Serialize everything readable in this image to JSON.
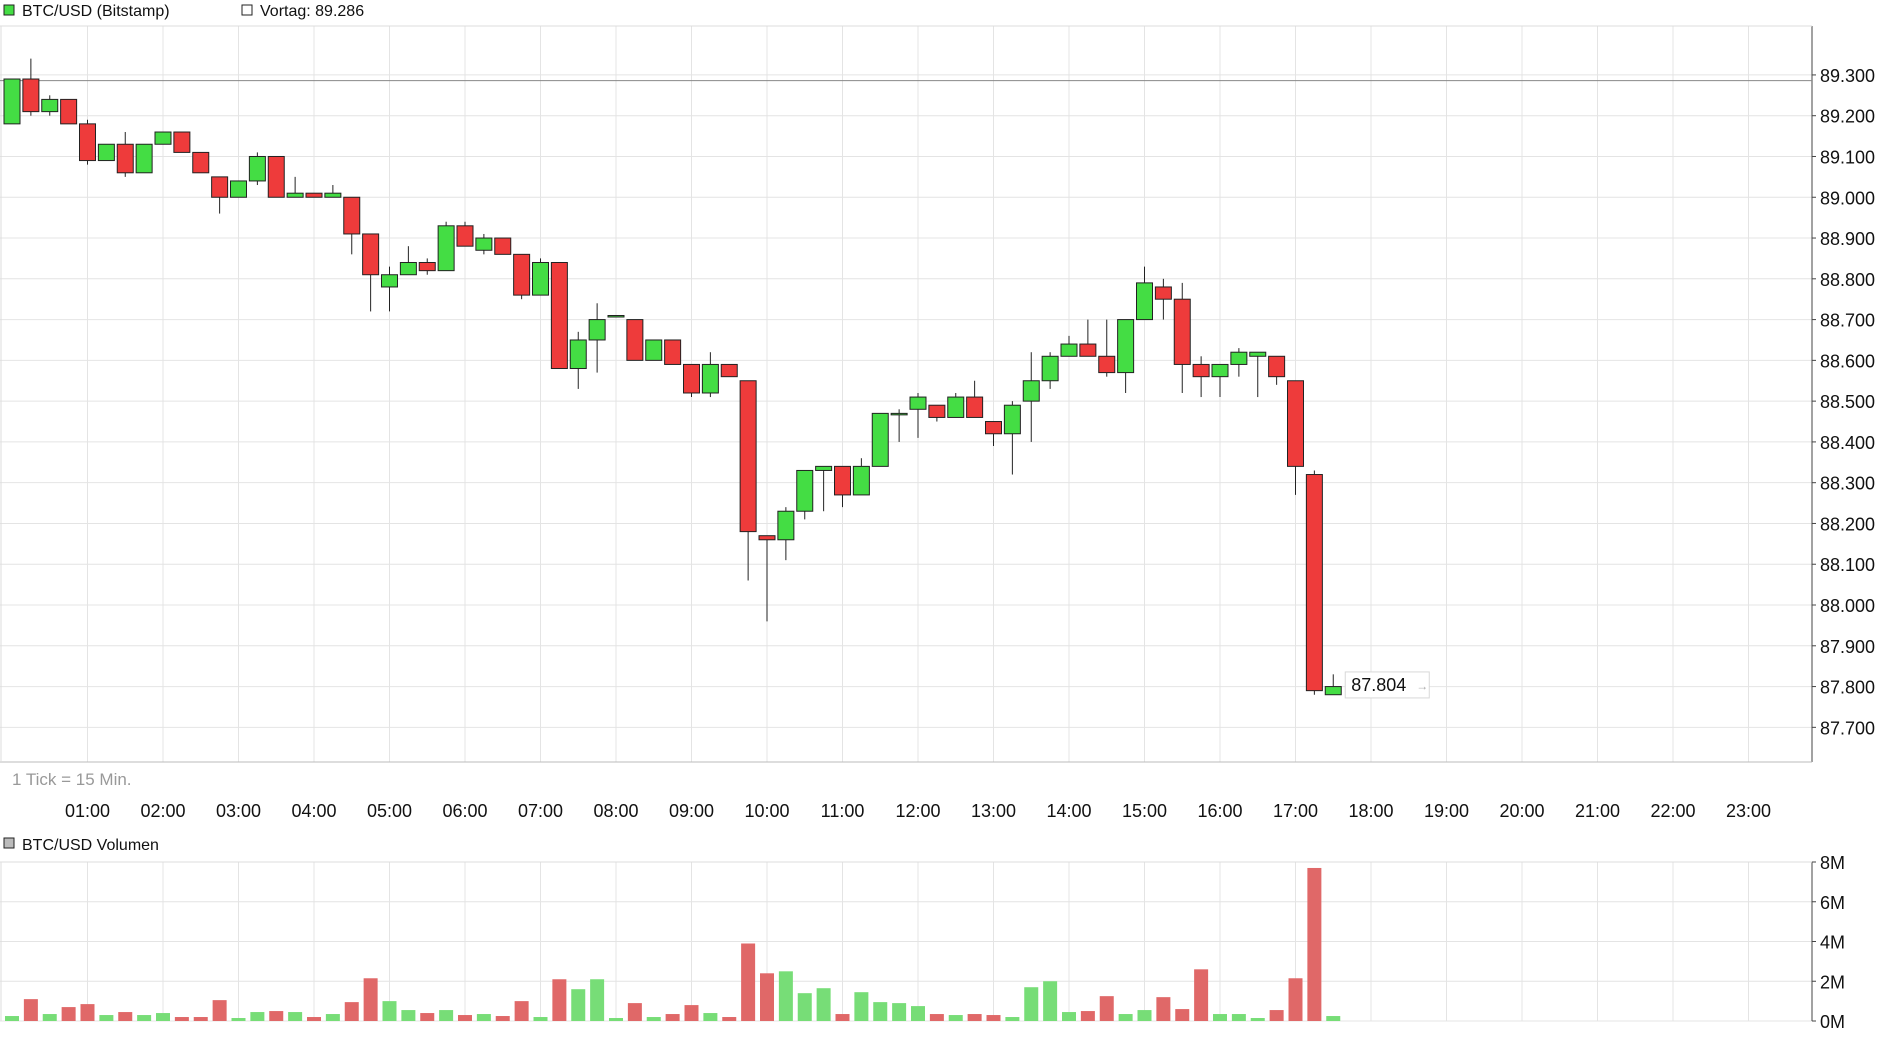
{
  "chart_data": [
    {
      "type": "candlestick",
      "legend_label": "BTC/USD (Bitstamp)",
      "prev_label": "Vortag: 89.286",
      "prev_close": 89.286,
      "last_price_label": "87.804",
      "last_price": 87.804,
      "tick_note": "1 Tick = 15 Min.",
      "ylim": [
        87.615,
        89.42
      ],
      "y_ticks": [
        87.7,
        87.8,
        87.9,
        88.0,
        88.1,
        88.2,
        88.3,
        88.4,
        88.5,
        88.6,
        88.7,
        88.8,
        88.9,
        89.0,
        89.1,
        89.2,
        89.3
      ],
      "y_tick_labels": [
        "87.700",
        "87.800",
        "87.900",
        "88.000",
        "88.100",
        "88.200",
        "88.300",
        "88.400",
        "88.500",
        "88.600",
        "88.700",
        "88.800",
        "88.900",
        "89.000",
        "89.100",
        "89.200",
        "89.300"
      ],
      "x_ticks": [
        1,
        2,
        3,
        4,
        5,
        6,
        7,
        8,
        9,
        10,
        11,
        12,
        13,
        14,
        15,
        16,
        17,
        18,
        19,
        20,
        21,
        22,
        23
      ],
      "x_tick_labels": [
        "01:00",
        "02:00",
        "03:00",
        "04:00",
        "05:00",
        "06:00",
        "07:00",
        "08:00",
        "09:00",
        "10:00",
        "11:00",
        "12:00",
        "13:00",
        "14:00",
        "15:00",
        "16:00",
        "17:00",
        "18:00",
        "19:00",
        "20:00",
        "21:00",
        "22:00",
        "23:00"
      ],
      "candles": [
        {
          "t": 0.0,
          "o": 89.18,
          "h": 89.29,
          "l": 89.18,
          "c": 89.29
        },
        {
          "t": 0.25,
          "o": 89.29,
          "h": 89.34,
          "l": 89.2,
          "c": 89.21
        },
        {
          "t": 0.5,
          "o": 89.21,
          "h": 89.25,
          "l": 89.2,
          "c": 89.24
        },
        {
          "t": 0.75,
          "o": 89.24,
          "h": 89.24,
          "l": 89.18,
          "c": 89.18
        },
        {
          "t": 1.0,
          "o": 89.18,
          "h": 89.19,
          "l": 89.08,
          "c": 89.09
        },
        {
          "t": 1.25,
          "o": 89.09,
          "h": 89.13,
          "l": 89.09,
          "c": 89.13
        },
        {
          "t": 1.5,
          "o": 89.13,
          "h": 89.16,
          "l": 89.05,
          "c": 89.06
        },
        {
          "t": 1.75,
          "o": 89.06,
          "h": 89.13,
          "l": 89.06,
          "c": 89.13
        },
        {
          "t": 2.0,
          "o": 89.13,
          "h": 89.16,
          "l": 89.13,
          "c": 89.16
        },
        {
          "t": 2.25,
          "o": 89.16,
          "h": 89.16,
          "l": 89.11,
          "c": 89.11
        },
        {
          "t": 2.5,
          "o": 89.11,
          "h": 89.11,
          "l": 89.06,
          "c": 89.06
        },
        {
          "t": 2.75,
          "o": 89.05,
          "h": 89.05,
          "l": 88.96,
          "c": 89.0
        },
        {
          "t": 3.0,
          "o": 89.0,
          "h": 89.04,
          "l": 89.0,
          "c": 89.04
        },
        {
          "t": 3.25,
          "o": 89.04,
          "h": 89.11,
          "l": 89.03,
          "c": 89.1
        },
        {
          "t": 3.5,
          "o": 89.1,
          "h": 89.1,
          "l": 89.0,
          "c": 89.0
        },
        {
          "t": 3.75,
          "o": 89.0,
          "h": 89.05,
          "l": 89.0,
          "c": 89.01
        },
        {
          "t": 4.0,
          "o": 89.01,
          "h": 89.01,
          "l": 89.0,
          "c": 89.0
        },
        {
          "t": 4.25,
          "o": 89.0,
          "h": 89.03,
          "l": 89.0,
          "c": 89.01
        },
        {
          "t": 4.5,
          "o": 89.0,
          "h": 89.0,
          "l": 88.86,
          "c": 88.91
        },
        {
          "t": 4.75,
          "o": 88.91,
          "h": 88.91,
          "l": 88.72,
          "c": 88.81
        },
        {
          "t": 5.0,
          "o": 88.78,
          "h": 88.83,
          "l": 88.72,
          "c": 88.81
        },
        {
          "t": 5.25,
          "o": 88.81,
          "h": 88.88,
          "l": 88.81,
          "c": 88.84
        },
        {
          "t": 5.5,
          "o": 88.84,
          "h": 88.85,
          "l": 88.81,
          "c": 88.82
        },
        {
          "t": 5.75,
          "o": 88.82,
          "h": 88.94,
          "l": 88.82,
          "c": 88.93
        },
        {
          "t": 6.0,
          "o": 88.93,
          "h": 88.94,
          "l": 88.88,
          "c": 88.88
        },
        {
          "t": 6.25,
          "o": 88.87,
          "h": 88.91,
          "l": 88.86,
          "c": 88.9
        },
        {
          "t": 6.5,
          "o": 88.9,
          "h": 88.9,
          "l": 88.86,
          "c": 88.86
        },
        {
          "t": 6.75,
          "o": 88.86,
          "h": 88.86,
          "l": 88.75,
          "c": 88.76
        },
        {
          "t": 7.0,
          "o": 88.76,
          "h": 88.85,
          "l": 88.76,
          "c": 88.84
        },
        {
          "t": 7.25,
          "o": 88.84,
          "h": 88.84,
          "l": 88.58,
          "c": 88.58
        },
        {
          "t": 7.5,
          "o": 88.58,
          "h": 88.67,
          "l": 88.53,
          "c": 88.65
        },
        {
          "t": 7.75,
          "o": 88.65,
          "h": 88.74,
          "l": 88.57,
          "c": 88.7
        },
        {
          "t": 8.0,
          "o": 88.71,
          "h": 88.71,
          "l": 88.71,
          "c": 88.71
        },
        {
          "t": 8.25,
          "o": 88.7,
          "h": 88.7,
          "l": 88.6,
          "c": 88.6
        },
        {
          "t": 8.5,
          "o": 88.6,
          "h": 88.65,
          "l": 88.6,
          "c": 88.65
        },
        {
          "t": 8.75,
          "o": 88.65,
          "h": 88.65,
          "l": 88.59,
          "c": 88.59
        },
        {
          "t": 9.0,
          "o": 88.59,
          "h": 88.59,
          "l": 88.51,
          "c": 88.52
        },
        {
          "t": 9.25,
          "o": 88.52,
          "h": 88.62,
          "l": 88.51,
          "c": 88.59
        },
        {
          "t": 9.5,
          "o": 88.59,
          "h": 88.59,
          "l": 88.56,
          "c": 88.56
        },
        {
          "t": 9.75,
          "o": 88.55,
          "h": 88.55,
          "l": 88.06,
          "c": 88.18
        },
        {
          "t": 10.0,
          "o": 88.17,
          "h": 88.17,
          "l": 87.96,
          "c": 88.16
        },
        {
          "t": 10.25,
          "o": 88.16,
          "h": 88.24,
          "l": 88.11,
          "c": 88.23
        },
        {
          "t": 10.5,
          "o": 88.23,
          "h": 88.33,
          "l": 88.21,
          "c": 88.33
        },
        {
          "t": 10.75,
          "o": 88.33,
          "h": 88.34,
          "l": 88.23,
          "c": 88.34
        },
        {
          "t": 11.0,
          "o": 88.34,
          "h": 88.34,
          "l": 88.24,
          "c": 88.27
        },
        {
          "t": 11.25,
          "o": 88.27,
          "h": 88.36,
          "l": 88.27,
          "c": 88.34
        },
        {
          "t": 11.5,
          "o": 88.34,
          "h": 88.47,
          "l": 88.34,
          "c": 88.47
        },
        {
          "t": 11.75,
          "o": 88.47,
          "h": 88.48,
          "l": 88.4,
          "c": 88.47
        },
        {
          "t": 12.0,
          "o": 88.48,
          "h": 88.52,
          "l": 88.41,
          "c": 88.51
        },
        {
          "t": 12.25,
          "o": 88.49,
          "h": 88.49,
          "l": 88.45,
          "c": 88.46
        },
        {
          "t": 12.5,
          "o": 88.46,
          "h": 88.52,
          "l": 88.46,
          "c": 88.51
        },
        {
          "t": 12.75,
          "o": 88.51,
          "h": 88.55,
          "l": 88.47,
          "c": 88.46
        },
        {
          "t": 13.0,
          "o": 88.45,
          "h": 88.45,
          "l": 88.39,
          "c": 88.42
        },
        {
          "t": 13.25,
          "o": 88.42,
          "h": 88.5,
          "l": 88.32,
          "c": 88.49
        },
        {
          "t": 13.5,
          "o": 88.5,
          "h": 88.62,
          "l": 88.4,
          "c": 88.55
        },
        {
          "t": 13.75,
          "o": 88.55,
          "h": 88.62,
          "l": 88.53,
          "c": 88.61
        },
        {
          "t": 14.0,
          "o": 88.61,
          "h": 88.66,
          "l": 88.61,
          "c": 88.64
        },
        {
          "t": 14.25,
          "o": 88.64,
          "h": 88.7,
          "l": 88.61,
          "c": 88.61
        },
        {
          "t": 14.5,
          "o": 88.61,
          "h": 88.7,
          "l": 88.56,
          "c": 88.57
        },
        {
          "t": 14.75,
          "o": 88.57,
          "h": 88.7,
          "l": 88.52,
          "c": 88.7
        },
        {
          "t": 15.0,
          "o": 88.7,
          "h": 88.83,
          "l": 88.7,
          "c": 88.79
        },
        {
          "t": 15.25,
          "o": 88.78,
          "h": 88.8,
          "l": 88.7,
          "c": 88.75
        },
        {
          "t": 15.5,
          "o": 88.75,
          "h": 88.79,
          "l": 88.52,
          "c": 88.59
        },
        {
          "t": 15.75,
          "o": 88.59,
          "h": 88.61,
          "l": 88.51,
          "c": 88.56
        },
        {
          "t": 16.0,
          "o": 88.56,
          "h": 88.59,
          "l": 88.51,
          "c": 88.59
        },
        {
          "t": 16.25,
          "o": 88.59,
          "h": 88.63,
          "l": 88.56,
          "c": 88.62
        },
        {
          "t": 16.5,
          "o": 88.61,
          "h": 88.62,
          "l": 88.51,
          "c": 88.62
        },
        {
          "t": 16.75,
          "o": 88.61,
          "h": 88.61,
          "l": 88.54,
          "c": 88.56
        },
        {
          "t": 17.0,
          "o": 88.55,
          "h": 88.55,
          "l": 88.27,
          "c": 88.34
        },
        {
          "t": 17.25,
          "o": 88.32,
          "h": 88.33,
          "l": 87.78,
          "c": 87.79
        },
        {
          "t": 17.5,
          "o": 87.78,
          "h": 87.83,
          "l": 87.78,
          "c": 87.8
        }
      ]
    },
    {
      "type": "bar",
      "legend_label": "BTC/USD Volumen",
      "ylim": [
        0,
        8
      ],
      "y_ticks": [
        0,
        2,
        4,
        6,
        8
      ],
      "y_tick_labels": [
        "0M",
        "2M",
        "4M",
        "6M",
        "8M"
      ],
      "unit": "M",
      "volumes": [
        0.25,
        1.1,
        0.35,
        0.7,
        0.85,
        0.3,
        0.45,
        0.3,
        0.4,
        0.2,
        0.2,
        1.05,
        0.15,
        0.45,
        0.5,
        0.45,
        0.2,
        0.35,
        0.95,
        2.15,
        1.0,
        0.55,
        0.4,
        0.55,
        0.3,
        0.35,
        0.25,
        1.0,
        0.2,
        2.1,
        1.6,
        2.1,
        0.15,
        0.9,
        0.2,
        0.35,
        0.8,
        0.4,
        0.2,
        3.9,
        2.4,
        2.5,
        1.4,
        1.65,
        0.35,
        1.45,
        0.95,
        0.9,
        0.75,
        0.35,
        0.3,
        0.35,
        0.3,
        0.2,
        1.7,
        2.0,
        0.45,
        0.5,
        1.25,
        0.35,
        0.55,
        1.2,
        0.6,
        2.6,
        0.35,
        0.35,
        0.15,
        0.55,
        2.15,
        7.7,
        0.25
      ]
    }
  ],
  "colors": {
    "up": "#44dd44",
    "down": "#ee3b3b",
    "vol_up": "#77dd77",
    "vol_down": "#e06868",
    "grid": "#e4e4e4",
    "ref_line": "#888888",
    "text": "#111111",
    "note": "#999999"
  }
}
